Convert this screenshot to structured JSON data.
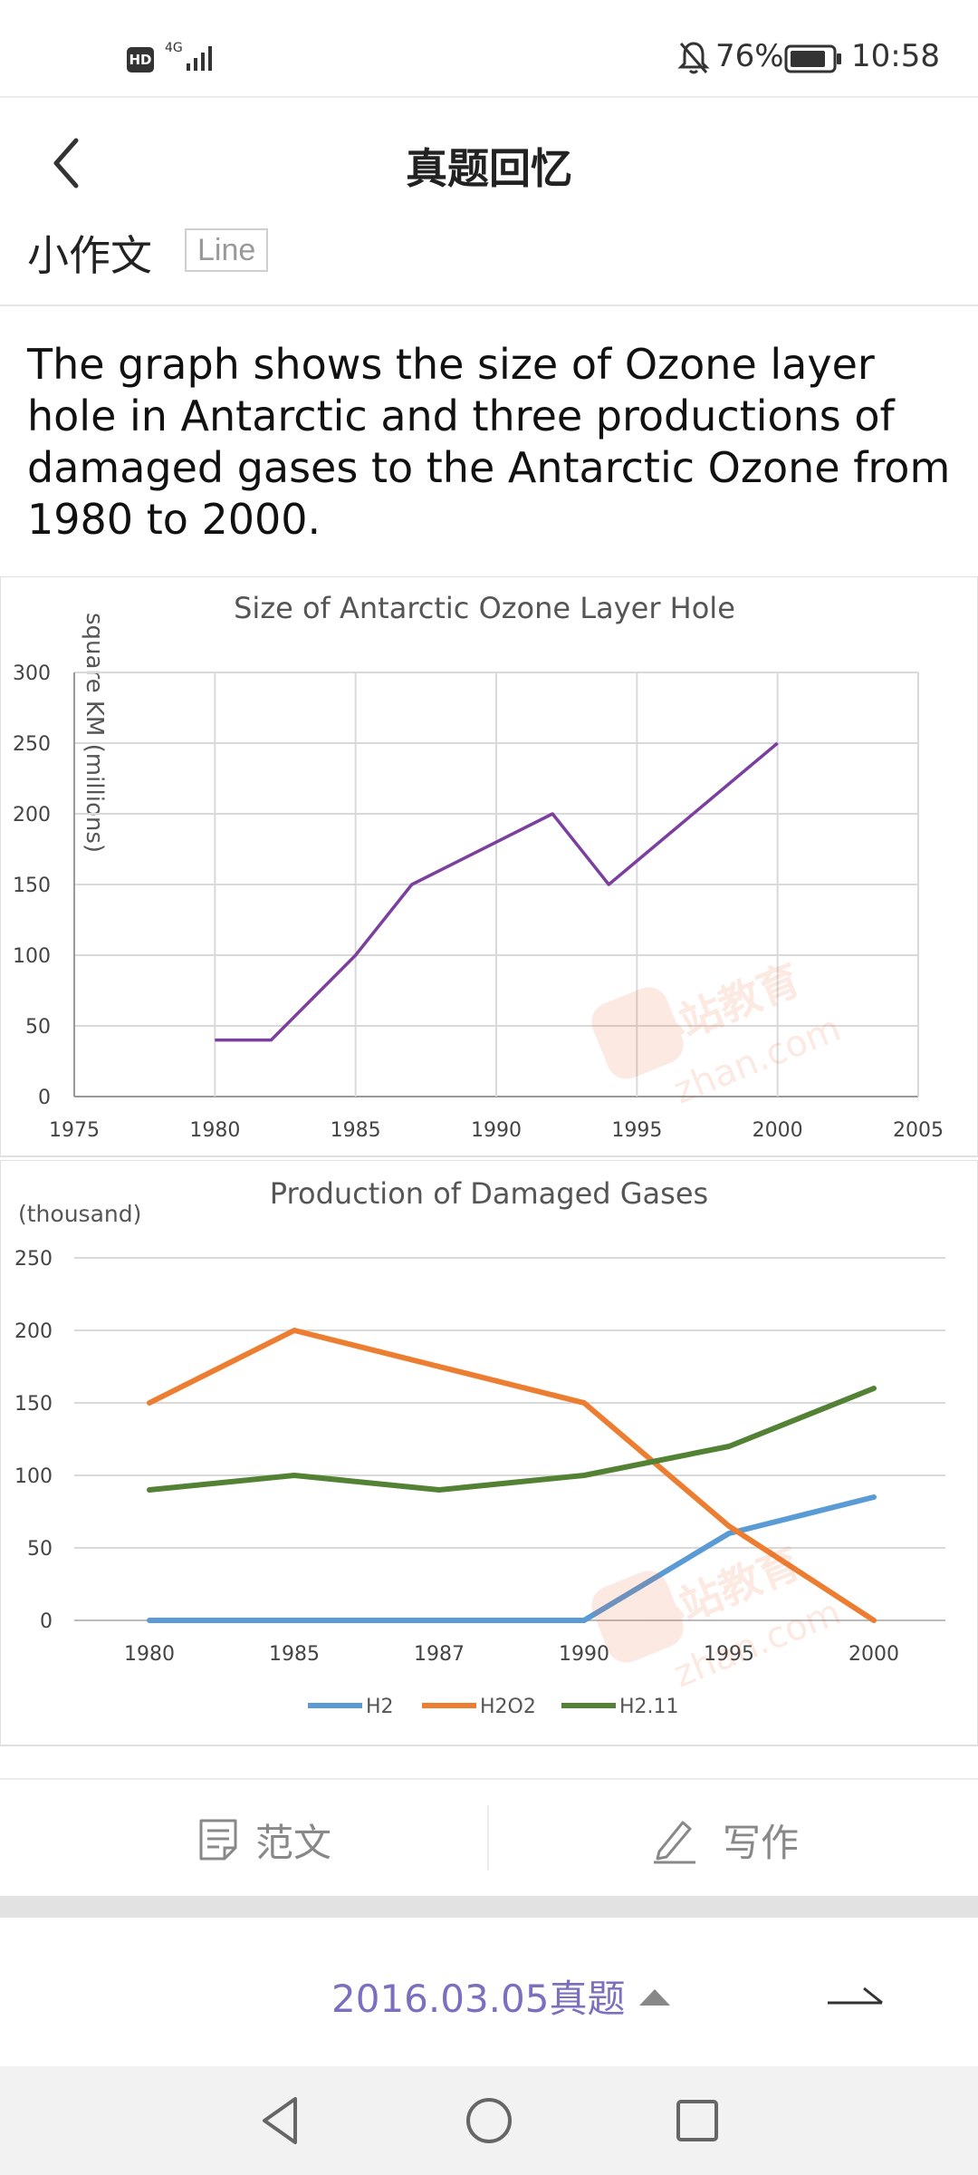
{
  "status_bar": {
    "hd": "HD",
    "network": "4G",
    "battery": "76%",
    "time": "10:58"
  },
  "header": {
    "title": "真题回忆"
  },
  "task": {
    "category": "小作文",
    "type_tag": "Line",
    "prompt": "The graph shows the size of Ozone layer hole in Antarctic and three productions of damaged gases to the Antarctic Ozone from 1980 to 2000."
  },
  "chart_data": [
    {
      "type": "line",
      "title": "Size of Antarctic Ozone Layer Hole",
      "ylabel": "square KM (millions)",
      "xlabel": "",
      "xlim": [
        1975,
        2005
      ],
      "ylim": [
        0,
        300
      ],
      "x_ticks": [
        1975,
        1980,
        1985,
        1990,
        1995,
        2000,
        2005
      ],
      "y_ticks": [
        0,
        50,
        100,
        150,
        200,
        250,
        300
      ],
      "grid": true,
      "series": [
        {
          "color": "#7b3fa0",
          "x": [
            1980,
            1982,
            1985,
            1987,
            1992,
            1994,
            2000
          ],
          "y": [
            40,
            40,
            100,
            150,
            200,
            150,
            250
          ]
        }
      ]
    },
    {
      "type": "line",
      "title": "Production of Damaged Gases",
      "ylabel": "(thousand)",
      "xlabel": "",
      "categories": [
        "1980",
        "1985",
        "1987",
        "1990",
        "1995",
        "2000"
      ],
      "ylim": [
        0,
        250
      ],
      "y_ticks": [
        0,
        50,
        100,
        150,
        200,
        250
      ],
      "grid": true,
      "legend": "bottom",
      "series": [
        {
          "name": "H2",
          "color": "#5b9bd5",
          "values": [
            0,
            0,
            0,
            0,
            60,
            85
          ]
        },
        {
          "name": "H2O2",
          "color": "#ed7d31",
          "values": [
            150,
            200,
            175,
            150,
            65,
            0
          ]
        },
        {
          "name": "H2.11",
          "color": "#548235",
          "values": [
            90,
            100,
            90,
            100,
            120,
            160
          ]
        }
      ]
    }
  ],
  "watermark": {
    "brand": "小站教育",
    "domain": "zhan.com"
  },
  "actions": {
    "sample_label": "范文",
    "write_label": "写作"
  },
  "footer": {
    "exam_label": "2016.03.05真题"
  }
}
